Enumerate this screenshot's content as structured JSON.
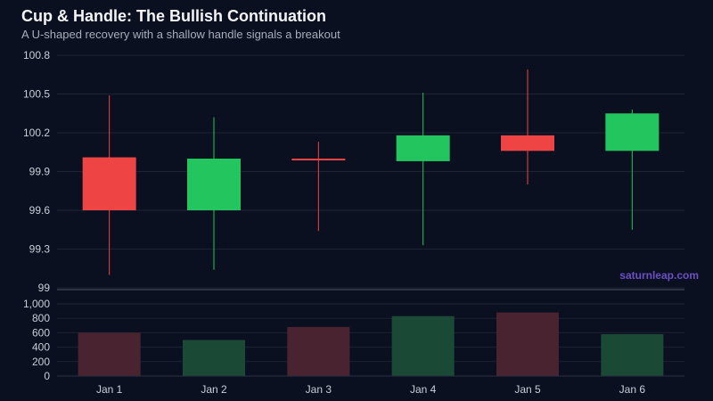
{
  "header": {
    "title": "Cup & Handle: The Bullish Continuation",
    "subtitle": "A U-shaped recovery with a shallow handle signals a breakout"
  },
  "watermark": "saturnleap.com",
  "colors": {
    "background": "#0b1020",
    "up": "#22c55e",
    "down": "#ef4444",
    "volume_up": "#1a4a35",
    "volume_down": "#4a2330",
    "grid": "#1c2333"
  },
  "chart_data": {
    "type": "candlestick",
    "categories": [
      "Jan 1",
      "Jan 2",
      "Jan 3",
      "Jan 4",
      "Jan 5",
      "Jan 6"
    ],
    "candles": [
      {
        "open": 100.01,
        "high": 100.49,
        "low": 99.1,
        "close": 99.6
      },
      {
        "open": 99.6,
        "high": 100.32,
        "low": 99.14,
        "close": 100.0
      },
      {
        "open": 100.0,
        "high": 100.13,
        "low": 99.44,
        "close": 99.99
      },
      {
        "open": 99.98,
        "high": 100.51,
        "low": 99.33,
        "close": 100.18
      },
      {
        "open": 100.18,
        "high": 100.69,
        "low": 99.8,
        "close": 100.06
      },
      {
        "open": 100.06,
        "high": 100.38,
        "low": 99.45,
        "close": 100.35
      }
    ],
    "volume": [
      600,
      500,
      680,
      830,
      880,
      580
    ],
    "price_axis": {
      "ticks": [
        "100.8",
        "100.5",
        "100.2",
        "99.9",
        "99.6",
        "99.3",
        "99"
      ],
      "range": [
        99,
        100.8
      ]
    },
    "volume_axis": {
      "ticks": [
        "1,000",
        "800",
        "600",
        "400",
        "200",
        "0"
      ],
      "range": [
        0,
        1000
      ]
    }
  }
}
